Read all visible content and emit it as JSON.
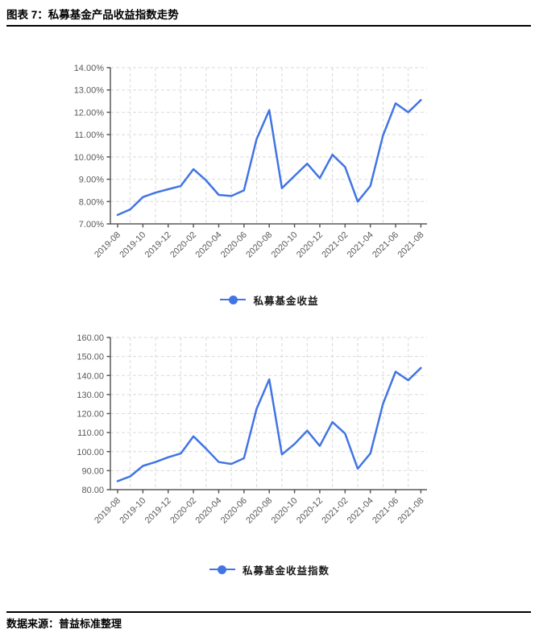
{
  "header": {
    "title": "图表 7：私募基金产品收益指数走势"
  },
  "footer": {
    "text": "数据来源：普益标准整理"
  },
  "colors": {
    "line": "#4175e3",
    "grid": "#d9d9d9",
    "axis": "#595959",
    "tick_label": "#595959"
  },
  "chart_data": [
    {
      "type": "line",
      "legend": "私募基金收益",
      "x": [
        "2019-08",
        "2019-09",
        "2019-10",
        "2019-11",
        "2019-12",
        "2020-01",
        "2020-02",
        "2020-03",
        "2020-04",
        "2020-05",
        "2020-06",
        "2020-07",
        "2020-08",
        "2020-09",
        "2020-10",
        "2020-11",
        "2020-12",
        "2021-01",
        "2021-02",
        "2021-03",
        "2021-04",
        "2021-05",
        "2021-06",
        "2021-07",
        "2021-08"
      ],
      "x_tick_labels": [
        "2019-08",
        "2019-10",
        "2019-12",
        "2020-02",
        "2020-04",
        "2020-06",
        "2020-08",
        "2020-10",
        "2020-12",
        "2021-02",
        "2021-04",
        "2021-06",
        "2021-08"
      ],
      "values": [
        7.4,
        7.65,
        8.2,
        8.4,
        8.55,
        8.7,
        9.45,
        8.95,
        8.3,
        8.25,
        8.5,
        10.8,
        12.1,
        8.6,
        9.15,
        9.7,
        9.05,
        10.1,
        9.55,
        8.0,
        8.7,
        10.95,
        12.4,
        12.0,
        12.55
      ],
      "ylim": [
        7,
        14
      ],
      "y_step": 1,
      "y_format": "percent",
      "grid": "dashed",
      "legend_position": "bottom",
      "line_color": "#4175e3"
    },
    {
      "type": "line",
      "legend": "私募基金收益指数",
      "x": [
        "2019-08",
        "2019-09",
        "2019-10",
        "2019-11",
        "2019-12",
        "2020-01",
        "2020-02",
        "2020-03",
        "2020-04",
        "2020-05",
        "2020-06",
        "2020-07",
        "2020-08",
        "2020-09",
        "2020-10",
        "2020-11",
        "2020-12",
        "2021-01",
        "2021-02",
        "2021-03",
        "2021-04",
        "2021-05",
        "2021-06",
        "2021-07",
        "2021-08"
      ],
      "x_tick_labels": [
        "2019-08",
        "2019-10",
        "2019-12",
        "2020-02",
        "2020-04",
        "2020-06",
        "2020-08",
        "2020-10",
        "2020-12",
        "2021-02",
        "2021-04",
        "2021-06",
        "2021-08"
      ],
      "values": [
        84.5,
        87,
        92.5,
        94.5,
        97,
        99,
        108,
        101.5,
        94.5,
        93.5,
        96.5,
        122.5,
        138,
        98.5,
        104,
        111,
        103,
        115.5,
        109.5,
        91,
        99,
        125,
        142,
        137.5,
        144
      ],
      "ylim": [
        80,
        160
      ],
      "y_step": 10,
      "y_format": "number",
      "grid": "dashed",
      "legend_position": "bottom",
      "line_color": "#4175e3"
    }
  ]
}
